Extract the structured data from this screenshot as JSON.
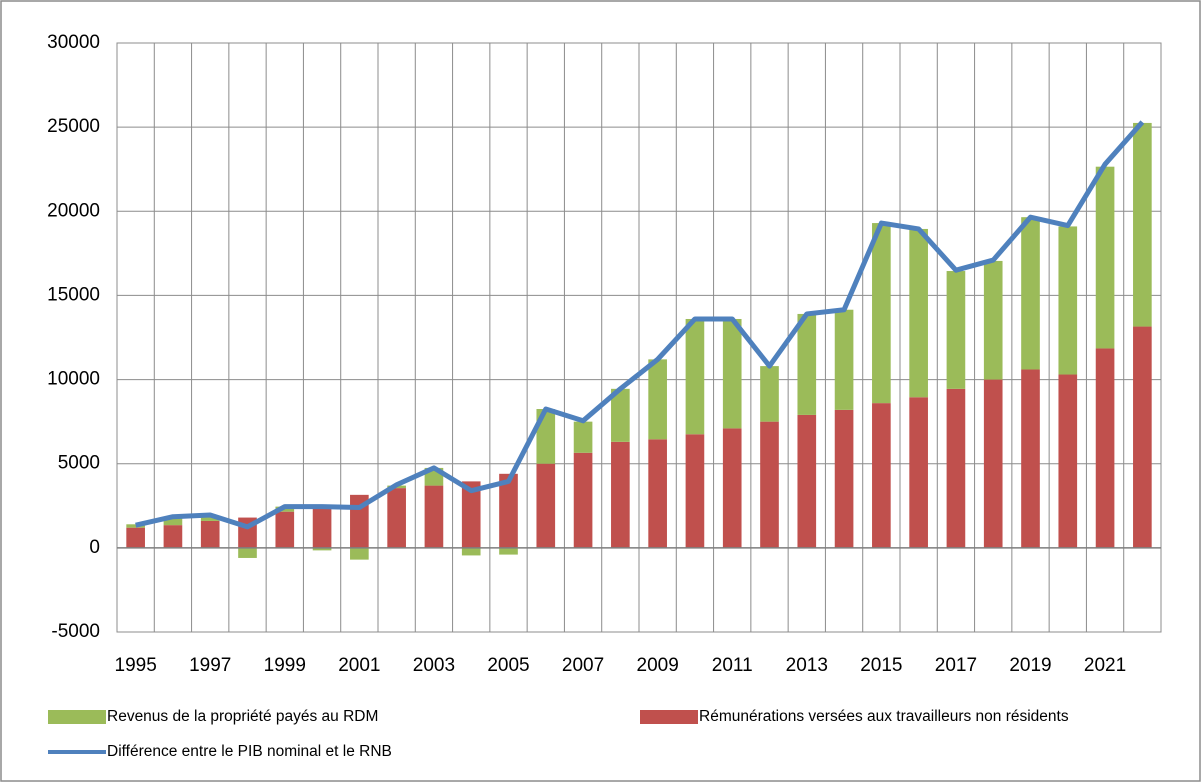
{
  "chart_data": {
    "type": "bar",
    "categories": [
      "1995",
      null,
      "1997",
      null,
      "1999",
      null,
      "2001",
      null,
      "2003",
      null,
      "2005",
      null,
      "2007",
      null,
      "2009",
      null,
      "2011",
      null,
      "2013",
      null,
      "2015",
      null,
      "2017",
      null,
      "2019",
      null,
      "2021",
      null
    ],
    "series": [
      {
        "name": "Revenus de la propriété payés au RDM",
        "color": "#9bbb59",
        "type": "bar",
        "values": [
          200,
          400,
          300,
          -600,
          300,
          -150,
          -700,
          150,
          1050,
          -450,
          -400,
          3250,
          1850,
          3150,
          4750,
          6850,
          6500,
          3300,
          6000,
          5950,
          10700,
          10000,
          7000,
          7050,
          9050,
          8800,
          10800,
          12100
        ]
      },
      {
        "name": "Rémunérations versées aux travailleurs non résidents",
        "color": "#c0504d",
        "type": "bar",
        "values": [
          1200,
          1350,
          1600,
          1800,
          2150,
          2550,
          3150,
          3550,
          3700,
          3950,
          4400,
          5000,
          5650,
          6300,
          6450,
          6750,
          7100,
          7500,
          7900,
          8200,
          8600,
          8950,
          9450,
          10000,
          10600,
          10300,
          11850,
          13150
        ]
      },
      {
        "name": "Différence entre le PIB nominal et le RNB",
        "color": "#4f81bd",
        "type": "line",
        "values": [
          1350,
          1850,
          1950,
          1250,
          2450,
          2450,
          2400,
          3750,
          4750,
          3400,
          3950,
          8250,
          7550,
          9450,
          11200,
          13600,
          13600,
          10800,
          13900,
          14150,
          19300,
          18950,
          16500,
          17100,
          19650,
          19150,
          22800,
          25300
        ]
      }
    ],
    "ylim": [
      -5000,
      30000
    ],
    "yticks": [
      -5000,
      0,
      5000,
      10000,
      15000,
      20000,
      25000,
      30000
    ],
    "grid": true,
    "legend": "bottom"
  }
}
